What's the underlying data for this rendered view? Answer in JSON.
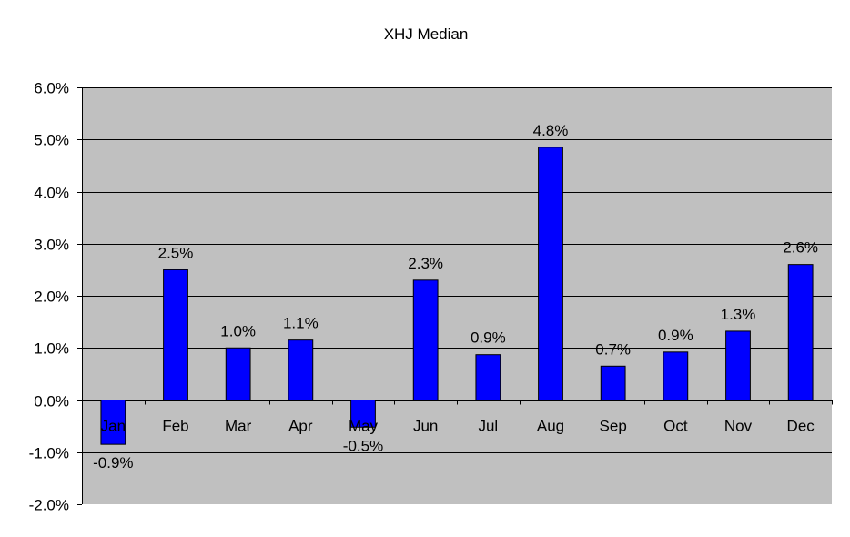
{
  "chart_data": {
    "type": "bar",
    "title": "XHJ Median",
    "xlabel": "",
    "ylabel": "",
    "categories": [
      "Jan",
      "Feb",
      "Mar",
      "Apr",
      "May",
      "Jun",
      "Jul",
      "Aug",
      "Sep",
      "Oct",
      "Nov",
      "Dec"
    ],
    "values": [
      -0.85,
      2.5,
      1.0,
      1.15,
      -0.52,
      2.3,
      0.87,
      4.85,
      0.65,
      0.92,
      1.32,
      2.6
    ],
    "data_labels": [
      "-0.9%",
      "2.5%",
      "1.0%",
      "1.1%",
      "-0.5%",
      "2.3%",
      "0.9%",
      "4.8%",
      "0.7%",
      "0.9%",
      "1.3%",
      "2.6%"
    ],
    "ylim": [
      -2.0,
      6.0
    ],
    "yticks": [
      -2,
      -1,
      0,
      1,
      2,
      3,
      4,
      5,
      6
    ],
    "ytick_labels": [
      "-2.0%",
      "-1.0%",
      "0.0%",
      "1.0%",
      "2.0%",
      "3.0%",
      "4.0%",
      "5.0%",
      "6.0%"
    ],
    "grid": true,
    "legend": "none",
    "colors": {
      "bar": "#0000ff",
      "bar_edge": "#000000",
      "plot_bg": "#c0c0c0",
      "grid": "#000000"
    }
  }
}
